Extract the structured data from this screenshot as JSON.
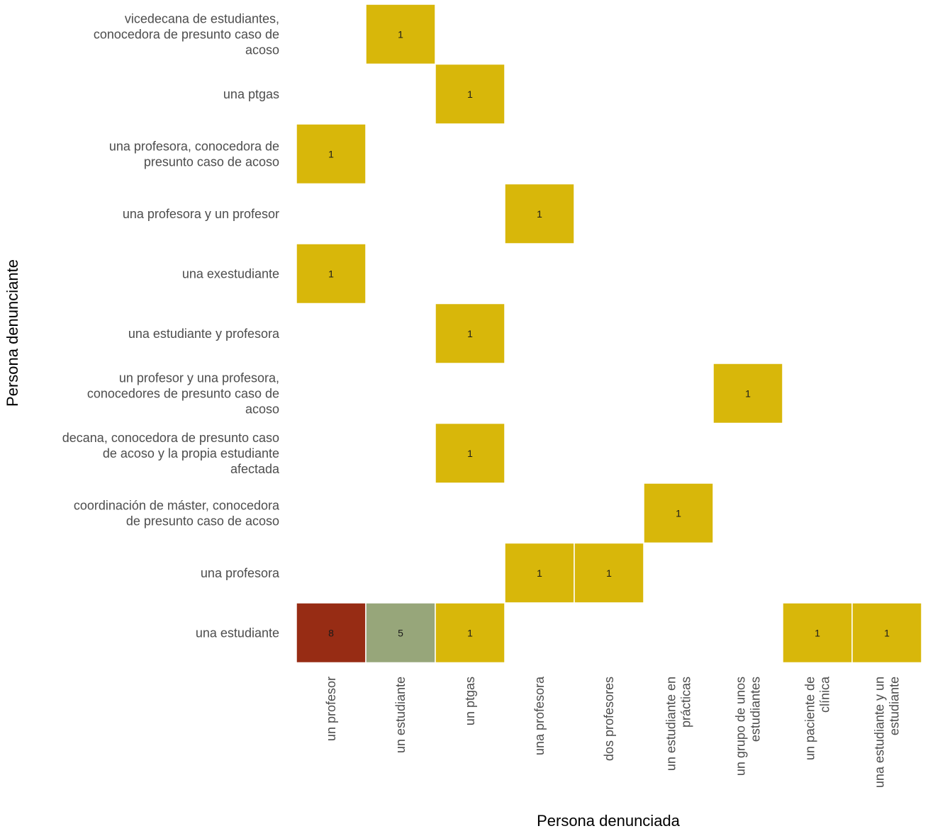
{
  "chart_data": {
    "type": "heatmap",
    "xlabel": "Persona denunciada",
    "ylabel": "Persona denunciante",
    "x_categories": [
      [
        "un profesor"
      ],
      [
        "un estudiante"
      ],
      [
        "un ptgas"
      ],
      [
        "una profesora"
      ],
      [
        "dos profesores"
      ],
      [
        "un estudiante en",
        "prácticas"
      ],
      [
        "un grupo de unos",
        "estudiantes"
      ],
      [
        "un paciente de",
        "clínica"
      ],
      [
        "una estudiante y un",
        "estudiante"
      ]
    ],
    "y_categories": [
      [
        "vicedecana de estudiantes,",
        "conocedora de presunto caso de",
        "acoso"
      ],
      [
        "una ptgas"
      ],
      [
        "una profesora, conocedora de",
        "presunto caso de acoso"
      ],
      [
        "una profesora y un profesor"
      ],
      [
        "una exestudiante"
      ],
      [
        "una estudiante y profesora"
      ],
      [
        "un profesor y una profesora,",
        "conocedores de presunto caso de",
        "acoso"
      ],
      [
        "decana, conocedora de presunto caso",
        "de acoso y la propia estudiante",
        "afectada"
      ],
      [
        "coordinación de máster, conocedora",
        "de presunto caso de acoso"
      ],
      [
        "una profesora"
      ],
      [
        "una estudiante"
      ]
    ],
    "cells": [
      {
        "x": 1,
        "y": 0,
        "value": 1
      },
      {
        "x": 2,
        "y": 1,
        "value": 1
      },
      {
        "x": 0,
        "y": 2,
        "value": 1
      },
      {
        "x": 3,
        "y": 3,
        "value": 1
      },
      {
        "x": 0,
        "y": 4,
        "value": 1
      },
      {
        "x": 2,
        "y": 5,
        "value": 1
      },
      {
        "x": 6,
        "y": 6,
        "value": 1
      },
      {
        "x": 2,
        "y": 7,
        "value": 1
      },
      {
        "x": 5,
        "y": 8,
        "value": 1
      },
      {
        "x": 3,
        "y": 9,
        "value": 1
      },
      {
        "x": 4,
        "y": 9,
        "value": 1
      },
      {
        "x": 0,
        "y": 10,
        "value": 8
      },
      {
        "x": 1,
        "y": 10,
        "value": 5
      },
      {
        "x": 2,
        "y": 10,
        "value": 1
      },
      {
        "x": 7,
        "y": 10,
        "value": 1
      },
      {
        "x": 8,
        "y": 10,
        "value": 1
      }
    ],
    "colors": {
      "1": "#d8b70a",
      "5": "#97a67a",
      "8": "#972c14",
      "cell_border": "#ffffff"
    }
  }
}
